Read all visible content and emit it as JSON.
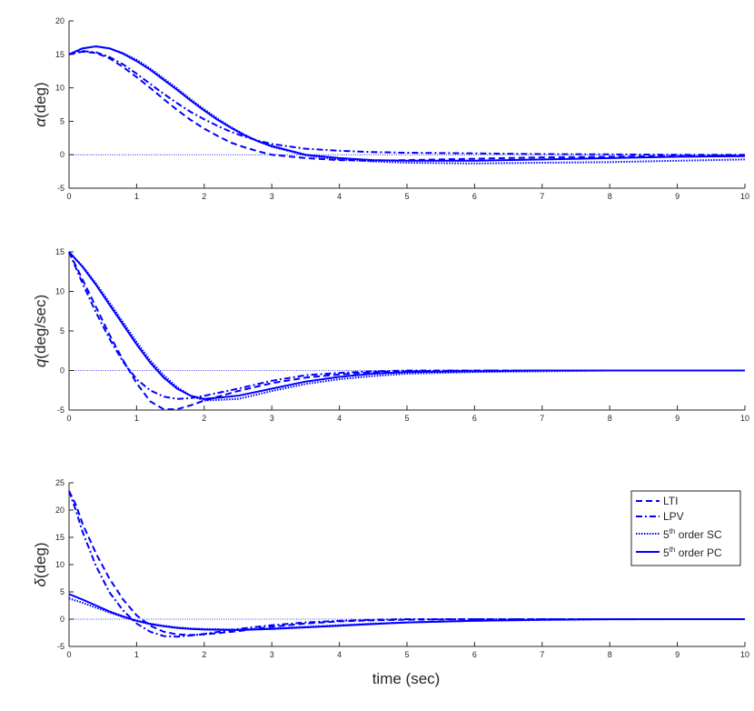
{
  "chart_data": [
    {
      "type": "line",
      "panel": "alpha",
      "ylabel_symbol": "α",
      "ylabel_unit": "(deg)",
      "xlim": [
        0,
        10
      ],
      "ylim": [
        -5,
        20
      ],
      "xticks": [
        "0",
        "1",
        "2",
        "3",
        "4",
        "5",
        "6",
        "7",
        "8",
        "9",
        "10"
      ],
      "yticks": [
        "-5",
        "0",
        "5",
        "10",
        "15",
        "20"
      ],
      "reference_line": 0,
      "series": [
        {
          "name": "LTI",
          "x": [
            0,
            0.2,
            0.4,
            0.6,
            0.8,
            1.0,
            1.2,
            1.4,
            1.6,
            1.8,
            2.0,
            2.2,
            2.4,
            2.6,
            2.8,
            3.0,
            3.5,
            4.0,
            4.5,
            5,
            6,
            7,
            8,
            9,
            10
          ],
          "y": [
            15,
            15.4,
            15.2,
            14.4,
            13.1,
            11.6,
            10,
            8.3,
            6.7,
            5.2,
            3.9,
            2.8,
            1.8,
            1.1,
            0.5,
            0,
            -0.5,
            -0.8,
            -0.9,
            -0.8,
            -0.6,
            -0.4,
            -0.3,
            -0.2,
            -0.1
          ]
        },
        {
          "name": "LPV",
          "x": [
            0,
            0.2,
            0.4,
            0.6,
            0.8,
            1.0,
            1.2,
            1.4,
            1.6,
            1.8,
            2.0,
            2.2,
            2.4,
            2.6,
            2.8,
            3.0,
            3.5,
            4.0,
            4.5,
            5,
            6,
            7,
            8,
            9,
            10
          ],
          "y": [
            15,
            15.5,
            15.3,
            14.6,
            13.5,
            12.1,
            10.6,
            9.1,
            7.7,
            6.4,
            5.3,
            4.3,
            3.4,
            2.7,
            2.1,
            1.6,
            0.9,
            0.6,
            0.4,
            0.3,
            0.2,
            0.1,
            0.05,
            0.0,
            0.0
          ]
        },
        {
          "name": "5th order SC",
          "x": [
            0,
            0.2,
            0.4,
            0.6,
            0.8,
            1.0,
            1.2,
            1.4,
            1.6,
            1.8,
            2.0,
            2.2,
            2.4,
            2.6,
            2.8,
            3.0,
            3.5,
            4.0,
            4.5,
            5,
            6,
            7,
            8,
            9,
            10
          ],
          "y": [
            15,
            15.9,
            16.2,
            15.9,
            15.2,
            14.2,
            12.9,
            11.4,
            9.9,
            8.3,
            6.8,
            5.4,
            4.1,
            3.0,
            2.0,
            1.2,
            -0.1,
            -0.7,
            -1.0,
            -1.2,
            -1.3,
            -1.2,
            -1.1,
            -0.9,
            -0.7
          ]
        },
        {
          "name": "5th order PC",
          "x": [
            0,
            0.2,
            0.4,
            0.6,
            0.8,
            1.0,
            1.2,
            1.4,
            1.6,
            1.8,
            2.0,
            2.2,
            2.4,
            2.6,
            2.8,
            3.0,
            3.5,
            4.0,
            4.5,
            5,
            6,
            7,
            8,
            9,
            10
          ],
          "y": [
            15,
            15.9,
            16.2,
            15.9,
            15.1,
            14.0,
            12.7,
            11.2,
            9.7,
            8.1,
            6.6,
            5.2,
            4.0,
            2.9,
            2.0,
            1.3,
            0.0,
            -0.5,
            -0.8,
            -0.9,
            -0.9,
            -0.7,
            -0.5,
            -0.3,
            -0.2
          ]
        }
      ]
    },
    {
      "type": "line",
      "panel": "q",
      "ylabel_symbol": "q",
      "ylabel_unit": "(deg/sec)",
      "xlim": [
        0,
        10
      ],
      "ylim": [
        -5,
        15
      ],
      "xticks": [
        "0",
        "1",
        "2",
        "3",
        "4",
        "5",
        "6",
        "7",
        "8",
        "9",
        "10"
      ],
      "yticks": [
        "-5",
        "0",
        "5",
        "10",
        "15"
      ],
      "reference_line": 0,
      "series": [
        {
          "name": "LTI",
          "x": [
            0,
            0.2,
            0.4,
            0.6,
            0.8,
            1.0,
            1.2,
            1.4,
            1.6,
            1.8,
            2.0,
            2.5,
            3.0,
            3.5,
            4.0,
            4.5,
            5,
            6,
            7,
            8,
            9,
            10
          ],
          "y": [
            15,
            11.5,
            8.0,
            4.5,
            1.3,
            -1.6,
            -3.9,
            -4.9,
            -4.9,
            -4.4,
            -3.8,
            -2.6,
            -1.6,
            -0.9,
            -0.5,
            -0.2,
            -0.1,
            0,
            0,
            0,
            0,
            0
          ]
        },
        {
          "name": "LPV",
          "x": [
            0,
            0.2,
            0.4,
            0.6,
            0.8,
            1.0,
            1.2,
            1.4,
            1.6,
            1.8,
            2.0,
            2.5,
            3.0,
            3.5,
            4.0,
            4.5,
            5,
            6,
            7,
            8,
            9,
            10
          ],
          "y": [
            15,
            11.0,
            7.3,
            4.0,
            1.1,
            -1.1,
            -2.5,
            -3.3,
            -3.6,
            -3.5,
            -3.2,
            -2.3,
            -1.3,
            -0.6,
            -0.3,
            -0.1,
            0,
            0,
            0,
            0,
            0,
            0
          ]
        },
        {
          "name": "5th order SC",
          "x": [
            0,
            0.2,
            0.4,
            0.6,
            0.8,
            1.0,
            1.2,
            1.4,
            1.6,
            1.8,
            2.0,
            2.5,
            3.0,
            3.5,
            4.0,
            4.5,
            5,
            6,
            7,
            8,
            9,
            10
          ],
          "y": [
            15,
            13.2,
            11.0,
            8.6,
            6.1,
            3.6,
            1.3,
            -0.6,
            -2.1,
            -3.2,
            -3.8,
            -3.6,
            -2.6,
            -1.7,
            -1.1,
            -0.7,
            -0.4,
            -0.2,
            -0.1,
            0,
            0,
            0
          ]
        },
        {
          "name": "5th order PC",
          "x": [
            0,
            0.2,
            0.4,
            0.6,
            0.8,
            1.0,
            1.2,
            1.4,
            1.6,
            1.8,
            2.0,
            2.5,
            3.0,
            3.5,
            4.0,
            4.5,
            5,
            6,
            7,
            8,
            9,
            10
          ],
          "y": [
            15,
            13.1,
            10.8,
            8.3,
            5.8,
            3.3,
            1.0,
            -0.9,
            -2.3,
            -3.2,
            -3.6,
            -3.2,
            -2.3,
            -1.4,
            -0.8,
            -0.4,
            -0.2,
            -0.1,
            0,
            0,
            0,
            0
          ]
        }
      ]
    },
    {
      "type": "line",
      "panel": "delta",
      "ylabel_symbol": "δ",
      "ylabel_unit": "(deg)",
      "xlim": [
        0,
        10
      ],
      "ylim": [
        -5,
        25
      ],
      "xticks": [
        "0",
        "1",
        "2",
        "3",
        "4",
        "5",
        "6",
        "7",
        "8",
        "9",
        "10"
      ],
      "yticks": [
        "-5",
        "0",
        "5",
        "10",
        "15",
        "20",
        "25"
      ],
      "reference_line": 0,
      "series": [
        {
          "name": "LTI",
          "x": [
            0,
            0.1,
            0.2,
            0.4,
            0.6,
            0.8,
            1.0,
            1.2,
            1.4,
            1.6,
            1.8,
            2.0,
            2.5,
            3.0,
            3.5,
            4.0,
            4.5,
            5,
            6,
            7,
            8,
            9,
            10
          ],
          "y": [
            23.5,
            21,
            17.5,
            12.0,
            7.4,
            3.6,
            0.7,
            -1.2,
            -2.3,
            -2.8,
            -2.9,
            -2.8,
            -2.2,
            -1.4,
            -0.8,
            -0.4,
            -0.2,
            -0.1,
            0,
            0,
            0,
            0,
            0
          ]
        },
        {
          "name": "LPV",
          "x": [
            0,
            0.1,
            0.2,
            0.4,
            0.6,
            0.8,
            1.0,
            1.2,
            1.4,
            1.6,
            1.8,
            2.0,
            2.5,
            3.0,
            3.5,
            4.0,
            4.5,
            5,
            6,
            7,
            8,
            9,
            10
          ],
          "y": [
            23.5,
            20,
            16.0,
            9.7,
            4.9,
            1.6,
            -0.8,
            -2.3,
            -3.1,
            -3.2,
            -3.0,
            -2.7,
            -1.8,
            -1.1,
            -0.6,
            -0.3,
            -0.1,
            0,
            0,
            0,
            0,
            0,
            0
          ]
        },
        {
          "name": "5th order SC",
          "x": [
            0,
            0.2,
            0.4,
            0.6,
            0.8,
            1.0,
            1.2,
            1.4,
            1.6,
            1.8,
            2.0,
            2.5,
            3.0,
            3.5,
            4.0,
            4.5,
            5,
            6,
            7,
            8,
            9,
            10
          ],
          "y": [
            3.8,
            3.0,
            2.1,
            1.2,
            0.4,
            -0.3,
            -0.8,
            -1.2,
            -1.5,
            -1.7,
            -1.8,
            -1.9,
            -1.7,
            -1.4,
            -1.1,
            -0.8,
            -0.6,
            -0.3,
            -0.15,
            -0.05,
            0,
            0
          ]
        },
        {
          "name": "5th order PC",
          "x": [
            0,
            0.2,
            0.4,
            0.6,
            0.8,
            1.0,
            1.2,
            1.4,
            1.6,
            1.8,
            2.0,
            2.5,
            3.0,
            3.5,
            4.0,
            4.5,
            5,
            6,
            7,
            8,
            9,
            10
          ],
          "y": [
            4.6,
            3.6,
            2.5,
            1.4,
            0.5,
            -0.3,
            -0.9,
            -1.3,
            -1.6,
            -1.8,
            -1.9,
            -2.0,
            -1.8,
            -1.5,
            -1.2,
            -0.9,
            -0.6,
            -0.3,
            -0.1,
            0,
            0,
            0
          ]
        }
      ]
    }
  ],
  "xlabel": "time (sec)",
  "legend": {
    "placement": "inside-top-right of bottom panel",
    "entries": [
      {
        "label": "LTI",
        "style": "dashed"
      },
      {
        "label": "LPV",
        "style": "dashdot"
      },
      {
        "label_base": "5",
        "label_sup": "th",
        "label_rest": " order SC",
        "style": "dotted"
      },
      {
        "label_base": "5",
        "label_sup": "th",
        "label_rest": " order PC",
        "style": "solid"
      }
    ]
  },
  "colors": {
    "line": "#0000ff",
    "axis": "#262626",
    "background": "#ffffff"
  }
}
